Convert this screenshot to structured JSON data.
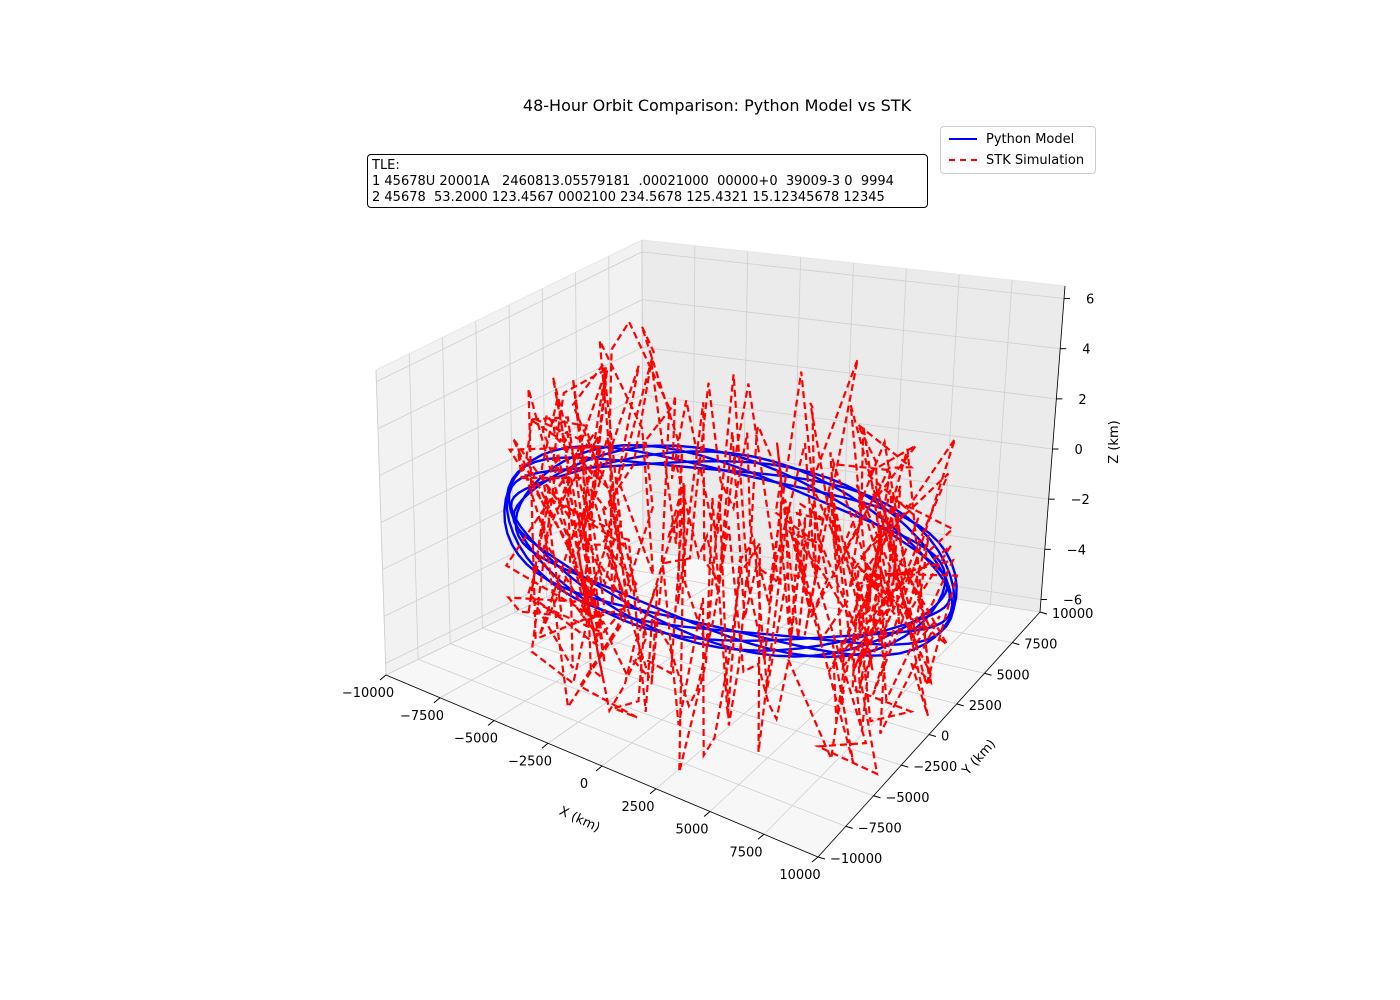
{
  "chart_data": {
    "type": "line",
    "projection": "3d",
    "title": "48-Hour Orbit Comparison: Python Model vs STK",
    "xlabel": "X (km)",
    "ylabel": "Y (km)",
    "zlabel": "Z (km)",
    "xlim": [
      -10000,
      10000
    ],
    "ylim": [
      -10000,
      10000
    ],
    "zlim": [
      -6.5,
      6.5
    ],
    "xticks": [
      "−10000",
      "−7500",
      "−5000",
      "−2500",
      "0",
      "2500",
      "5000",
      "7500",
      "10000"
    ],
    "yticks": [
      "−10000",
      "−7500",
      "−5000",
      "−2500",
      "0",
      "2500",
      "5000",
      "7500",
      "10000"
    ],
    "zticks": [
      "−6",
      "−4",
      "−2",
      "0",
      "2",
      "4",
      "6"
    ],
    "grid": true,
    "legend_position": "top-right",
    "annotation": {
      "label": "TLE:",
      "line1": "1 45678U 20001A   2460813.05579181  .00021000  00000+0  39009-3 0  9994",
      "line2": "2 45678  53.2000 123.4567 0002100 234.5678 125.4321 15.12345678 12345"
    },
    "series": [
      {
        "name": "Python Model",
        "color": "#0000ff",
        "linestyle": "solid",
        "orbit_radius_km": 9000,
        "z_amplitude_km": 0.5,
        "points": 400
      },
      {
        "name": "STK Simulation",
        "color": "#ff0000",
        "linestyle": "dashed",
        "orbit_radius_km": 9000,
        "z_amplitude_km": 6.0,
        "points": 360
      }
    ]
  }
}
